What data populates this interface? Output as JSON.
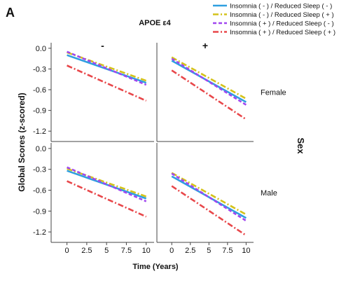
{
  "panel_label": "A",
  "chart_data": {
    "type": "line",
    "col_facet_title": "APOE ε4",
    "col_labels": [
      "-",
      "+"
    ],
    "row_facet_title": "Sex",
    "row_labels": [
      "Female",
      "Male"
    ],
    "xlabel": "Time (Years)",
    "ylabel": "Global Scores (z-scored)",
    "x_ticks": [
      0,
      2.5,
      5,
      7.5,
      10
    ],
    "y_ticks": [
      "0.0",
      "-0.3",
      "-0.6",
      "-0.9",
      "-1.2"
    ],
    "y_tick_values": [
      0.0,
      -0.3,
      -0.6,
      -0.9,
      -1.2
    ],
    "xlim": [
      -2,
      11
    ],
    "ylim": [
      -1.35,
      0.08
    ],
    "grid": false,
    "legend_position": "top-right",
    "legend": [
      {
        "label": "Insomnia ( - ) / Reduced Sleep ( - )",
        "color": "#2f9fe0",
        "dash": "solid"
      },
      {
        "label": "Insomnia ( - ) / Reduced Sleep ( + )",
        "color": "#d4c21a",
        "dash": "dashdot"
      },
      {
        "label": "Insomnia ( + ) / Reduced Sleep ( - )",
        "color": "#a046f0",
        "dash": "dashed"
      },
      {
        "label": "Insomnia ( + ) / Reduced Sleep ( + )",
        "color": "#e8474a",
        "dash": "dashdot"
      }
    ],
    "panels": [
      {
        "row": "Female",
        "col": "-",
        "series": [
          {
            "name": "Insomnia ( - ) / Reduced Sleep ( - )",
            "x": [
              0,
              10
            ],
            "y": [
              -0.1,
              -0.5
            ]
          },
          {
            "name": "Insomnia ( - ) / Reduced Sleep ( + )",
            "x": [
              0,
              10
            ],
            "y": [
              -0.06,
              -0.47
            ]
          },
          {
            "name": "Insomnia ( + ) / Reduced Sleep ( - )",
            "x": [
              0,
              10
            ],
            "y": [
              -0.05,
              -0.53
            ]
          },
          {
            "name": "Insomnia ( + ) / Reduced Sleep ( + )",
            "x": [
              0,
              10
            ],
            "y": [
              -0.25,
              -0.76
            ]
          }
        ]
      },
      {
        "row": "Female",
        "col": "+",
        "series": [
          {
            "name": "Insomnia ( - ) / Reduced Sleep ( - )",
            "x": [
              0,
              10
            ],
            "y": [
              -0.18,
              -0.78
            ]
          },
          {
            "name": "Insomnia ( - ) / Reduced Sleep ( + )",
            "x": [
              0,
              10
            ],
            "y": [
              -0.13,
              -0.73
            ]
          },
          {
            "name": "Insomnia ( + ) / Reduced Sleep ( - )",
            "x": [
              0,
              10
            ],
            "y": [
              -0.15,
              -0.82
            ]
          },
          {
            "name": "Insomnia ( + ) / Reduced Sleep ( + )",
            "x": [
              0,
              10
            ],
            "y": [
              -0.32,
              -1.03
            ]
          }
        ]
      },
      {
        "row": "Male",
        "col": "-",
        "series": [
          {
            "name": "Insomnia ( - ) / Reduced Sleep ( - )",
            "x": [
              0,
              10
            ],
            "y": [
              -0.32,
              -0.72
            ]
          },
          {
            "name": "Insomnia ( - ) / Reduced Sleep ( + )",
            "x": [
              0,
              10
            ],
            "y": [
              -0.29,
              -0.69
            ]
          },
          {
            "name": "Insomnia ( + ) / Reduced Sleep ( - )",
            "x": [
              0,
              10
            ],
            "y": [
              -0.27,
              -0.76
            ]
          },
          {
            "name": "Insomnia ( + ) / Reduced Sleep ( + )",
            "x": [
              0,
              10
            ],
            "y": [
              -0.47,
              -0.98
            ]
          }
        ]
      },
      {
        "row": "Male",
        "col": "+",
        "series": [
          {
            "name": "Insomnia ( - ) / Reduced Sleep ( - )",
            "x": [
              0,
              10
            ],
            "y": [
              -0.4,
              -1.0
            ]
          },
          {
            "name": "Insomnia ( - ) / Reduced Sleep ( + )",
            "x": [
              0,
              10
            ],
            "y": [
              -0.35,
              -0.95
            ]
          },
          {
            "name": "Insomnia ( + ) / Reduced Sleep ( - )",
            "x": [
              0,
              10
            ],
            "y": [
              -0.36,
              -1.04
            ]
          },
          {
            "name": "Insomnia ( + ) / Reduced Sleep ( + )",
            "x": [
              0,
              10
            ],
            "y": [
              -0.54,
              -1.25
            ]
          }
        ]
      }
    ]
  }
}
